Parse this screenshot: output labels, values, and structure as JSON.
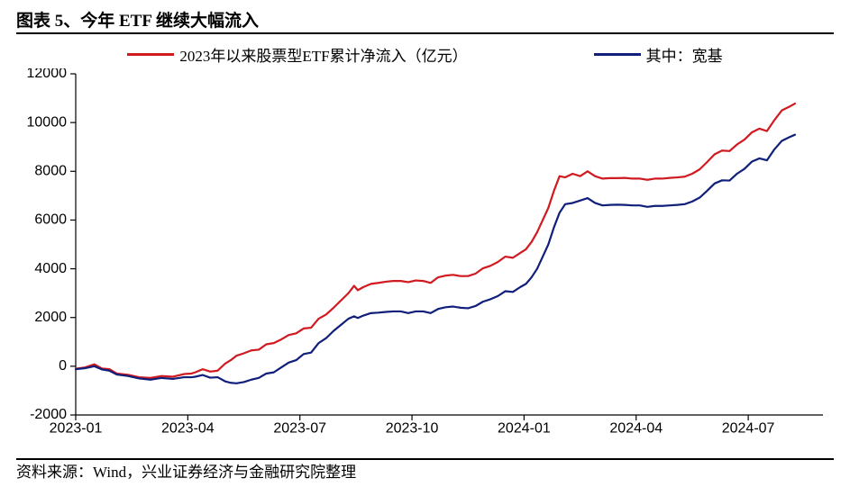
{
  "title": "图表 5、今年 ETF 继续大幅流入",
  "source": "资料来源：Wind，兴业证券经济与金融研究院整理",
  "chart": {
    "type": "line",
    "background_color": "#ffffff",
    "axis_color": "#000000",
    "ylim": [
      -2000,
      12000
    ],
    "ytick_step": 2000,
    "y_ticks": [
      -2000,
      0,
      2000,
      4000,
      6000,
      8000,
      10000,
      12000
    ],
    "x_labels": [
      "2023-01",
      "2023-04",
      "2023-07",
      "2023-10",
      "2024-01",
      "2024-04",
      "2024-07"
    ],
    "x_range_months": 20,
    "tick_len": 6,
    "line_width": 2.2,
    "title_fontsize": 19,
    "label_fontsize": 16,
    "legend_fontsize": 17,
    "legend": [
      {
        "label": "2023年以来股票型ETF累计净流入（亿元）",
        "color": "#d11920"
      },
      {
        "label": "其中：宽基",
        "color": "#0f1f7a"
      }
    ],
    "series": [
      {
        "name": "etf_total",
        "color": "#d11920",
        "points": [
          [
            0.0,
            -100
          ],
          [
            0.25,
            -50
          ],
          [
            0.5,
            80
          ],
          [
            0.7,
            -90
          ],
          [
            0.9,
            -120
          ],
          [
            1.1,
            -300
          ],
          [
            1.4,
            -350
          ],
          [
            1.7,
            -450
          ],
          [
            2.0,
            -480
          ],
          [
            2.3,
            -400
          ],
          [
            2.6,
            -430
          ],
          [
            2.9,
            -320
          ],
          [
            3.1,
            -300
          ],
          [
            3.2,
            -250
          ],
          [
            3.4,
            -120
          ],
          [
            3.6,
            -220
          ],
          [
            3.8,
            -180
          ],
          [
            4.0,
            110
          ],
          [
            4.15,
            250
          ],
          [
            4.3,
            430
          ],
          [
            4.5,
            530
          ],
          [
            4.7,
            650
          ],
          [
            4.9,
            680
          ],
          [
            5.1,
            900
          ],
          [
            5.3,
            950
          ],
          [
            5.5,
            1100
          ],
          [
            5.7,
            1280
          ],
          [
            5.9,
            1350
          ],
          [
            6.1,
            1550
          ],
          [
            6.3,
            1580
          ],
          [
            6.5,
            1950
          ],
          [
            6.7,
            2120
          ],
          [
            6.9,
            2400
          ],
          [
            7.1,
            2700
          ],
          [
            7.3,
            3000
          ],
          [
            7.45,
            3300
          ],
          [
            7.55,
            3120
          ],
          [
            7.7,
            3250
          ],
          [
            7.9,
            3380
          ],
          [
            8.1,
            3420
          ],
          [
            8.3,
            3470
          ],
          [
            8.5,
            3500
          ],
          [
            8.7,
            3500
          ],
          [
            8.9,
            3450
          ],
          [
            9.1,
            3520
          ],
          [
            9.3,
            3500
          ],
          [
            9.5,
            3420
          ],
          [
            9.7,
            3650
          ],
          [
            9.9,
            3720
          ],
          [
            10.1,
            3750
          ],
          [
            10.3,
            3700
          ],
          [
            10.5,
            3700
          ],
          [
            10.7,
            3800
          ],
          [
            10.9,
            4020
          ],
          [
            11.1,
            4120
          ],
          [
            11.3,
            4280
          ],
          [
            11.5,
            4500
          ],
          [
            11.7,
            4450
          ],
          [
            11.9,
            4650
          ],
          [
            12.05,
            4800
          ],
          [
            12.2,
            5100
          ],
          [
            12.35,
            5500
          ],
          [
            12.5,
            6000
          ],
          [
            12.65,
            6500
          ],
          [
            12.8,
            7200
          ],
          [
            12.95,
            7800
          ],
          [
            13.1,
            7750
          ],
          [
            13.3,
            7900
          ],
          [
            13.5,
            7800
          ],
          [
            13.7,
            8000
          ],
          [
            13.9,
            7800
          ],
          [
            14.1,
            7700
          ],
          [
            14.3,
            7720
          ],
          [
            14.5,
            7720
          ],
          [
            14.7,
            7730
          ],
          [
            14.9,
            7700
          ],
          [
            15.1,
            7700
          ],
          [
            15.3,
            7650
          ],
          [
            15.5,
            7700
          ],
          [
            15.7,
            7700
          ],
          [
            15.9,
            7730
          ],
          [
            16.1,
            7750
          ],
          [
            16.3,
            7780
          ],
          [
            16.5,
            7900
          ],
          [
            16.7,
            8080
          ],
          [
            16.9,
            8380
          ],
          [
            17.1,
            8700
          ],
          [
            17.3,
            8850
          ],
          [
            17.5,
            8830
          ],
          [
            17.7,
            9100
          ],
          [
            17.9,
            9300
          ],
          [
            18.1,
            9600
          ],
          [
            18.3,
            9750
          ],
          [
            18.5,
            9650
          ],
          [
            18.7,
            10100
          ],
          [
            18.9,
            10500
          ],
          [
            19.1,
            10650
          ],
          [
            19.25,
            10780
          ]
        ]
      },
      {
        "name": "broad_base",
        "color": "#0f1f7a",
        "points": [
          [
            0.0,
            -120
          ],
          [
            0.25,
            -80
          ],
          [
            0.5,
            0
          ],
          [
            0.7,
            -130
          ],
          [
            0.9,
            -180
          ],
          [
            1.1,
            -340
          ],
          [
            1.4,
            -400
          ],
          [
            1.7,
            -500
          ],
          [
            2.0,
            -550
          ],
          [
            2.3,
            -480
          ],
          [
            2.6,
            -520
          ],
          [
            2.9,
            -450
          ],
          [
            3.1,
            -450
          ],
          [
            3.2,
            -430
          ],
          [
            3.4,
            -360
          ],
          [
            3.6,
            -470
          ],
          [
            3.8,
            -450
          ],
          [
            4.0,
            -620
          ],
          [
            4.15,
            -680
          ],
          [
            4.3,
            -700
          ],
          [
            4.5,
            -650
          ],
          [
            4.7,
            -550
          ],
          [
            4.9,
            -480
          ],
          [
            5.1,
            -300
          ],
          [
            5.3,
            -250
          ],
          [
            5.5,
            -50
          ],
          [
            5.7,
            150
          ],
          [
            5.9,
            250
          ],
          [
            6.1,
            500
          ],
          [
            6.3,
            560
          ],
          [
            6.5,
            950
          ],
          [
            6.7,
            1150
          ],
          [
            6.9,
            1450
          ],
          [
            7.1,
            1700
          ],
          [
            7.3,
            1950
          ],
          [
            7.45,
            2050
          ],
          [
            7.55,
            1980
          ],
          [
            7.7,
            2080
          ],
          [
            7.9,
            2180
          ],
          [
            8.1,
            2200
          ],
          [
            8.3,
            2230
          ],
          [
            8.5,
            2250
          ],
          [
            8.7,
            2250
          ],
          [
            8.9,
            2180
          ],
          [
            9.1,
            2250
          ],
          [
            9.3,
            2250
          ],
          [
            9.5,
            2180
          ],
          [
            9.7,
            2350
          ],
          [
            9.9,
            2420
          ],
          [
            10.1,
            2450
          ],
          [
            10.3,
            2400
          ],
          [
            10.5,
            2380
          ],
          [
            10.7,
            2470
          ],
          [
            10.9,
            2650
          ],
          [
            11.1,
            2750
          ],
          [
            11.3,
            2880
          ],
          [
            11.5,
            3080
          ],
          [
            11.7,
            3050
          ],
          [
            11.9,
            3250
          ],
          [
            12.05,
            3380
          ],
          [
            12.2,
            3650
          ],
          [
            12.35,
            4000
          ],
          [
            12.5,
            4500
          ],
          [
            12.65,
            5000
          ],
          [
            12.8,
            5700
          ],
          [
            12.95,
            6300
          ],
          [
            13.1,
            6650
          ],
          [
            13.3,
            6700
          ],
          [
            13.5,
            6800
          ],
          [
            13.7,
            6900
          ],
          [
            13.9,
            6700
          ],
          [
            14.1,
            6600
          ],
          [
            14.3,
            6620
          ],
          [
            14.5,
            6630
          ],
          [
            14.7,
            6620
          ],
          [
            14.9,
            6600
          ],
          [
            15.1,
            6600
          ],
          [
            15.3,
            6540
          ],
          [
            15.5,
            6580
          ],
          [
            15.7,
            6580
          ],
          [
            15.9,
            6600
          ],
          [
            16.1,
            6620
          ],
          [
            16.3,
            6650
          ],
          [
            16.5,
            6760
          ],
          [
            16.7,
            6920
          ],
          [
            16.9,
            7200
          ],
          [
            17.1,
            7500
          ],
          [
            17.3,
            7630
          ],
          [
            17.5,
            7620
          ],
          [
            17.7,
            7900
          ],
          [
            17.9,
            8100
          ],
          [
            18.1,
            8400
          ],
          [
            18.3,
            8530
          ],
          [
            18.5,
            8450
          ],
          [
            18.7,
            8900
          ],
          [
            18.9,
            9250
          ],
          [
            19.1,
            9400
          ],
          [
            19.25,
            9500
          ]
        ]
      }
    ]
  }
}
